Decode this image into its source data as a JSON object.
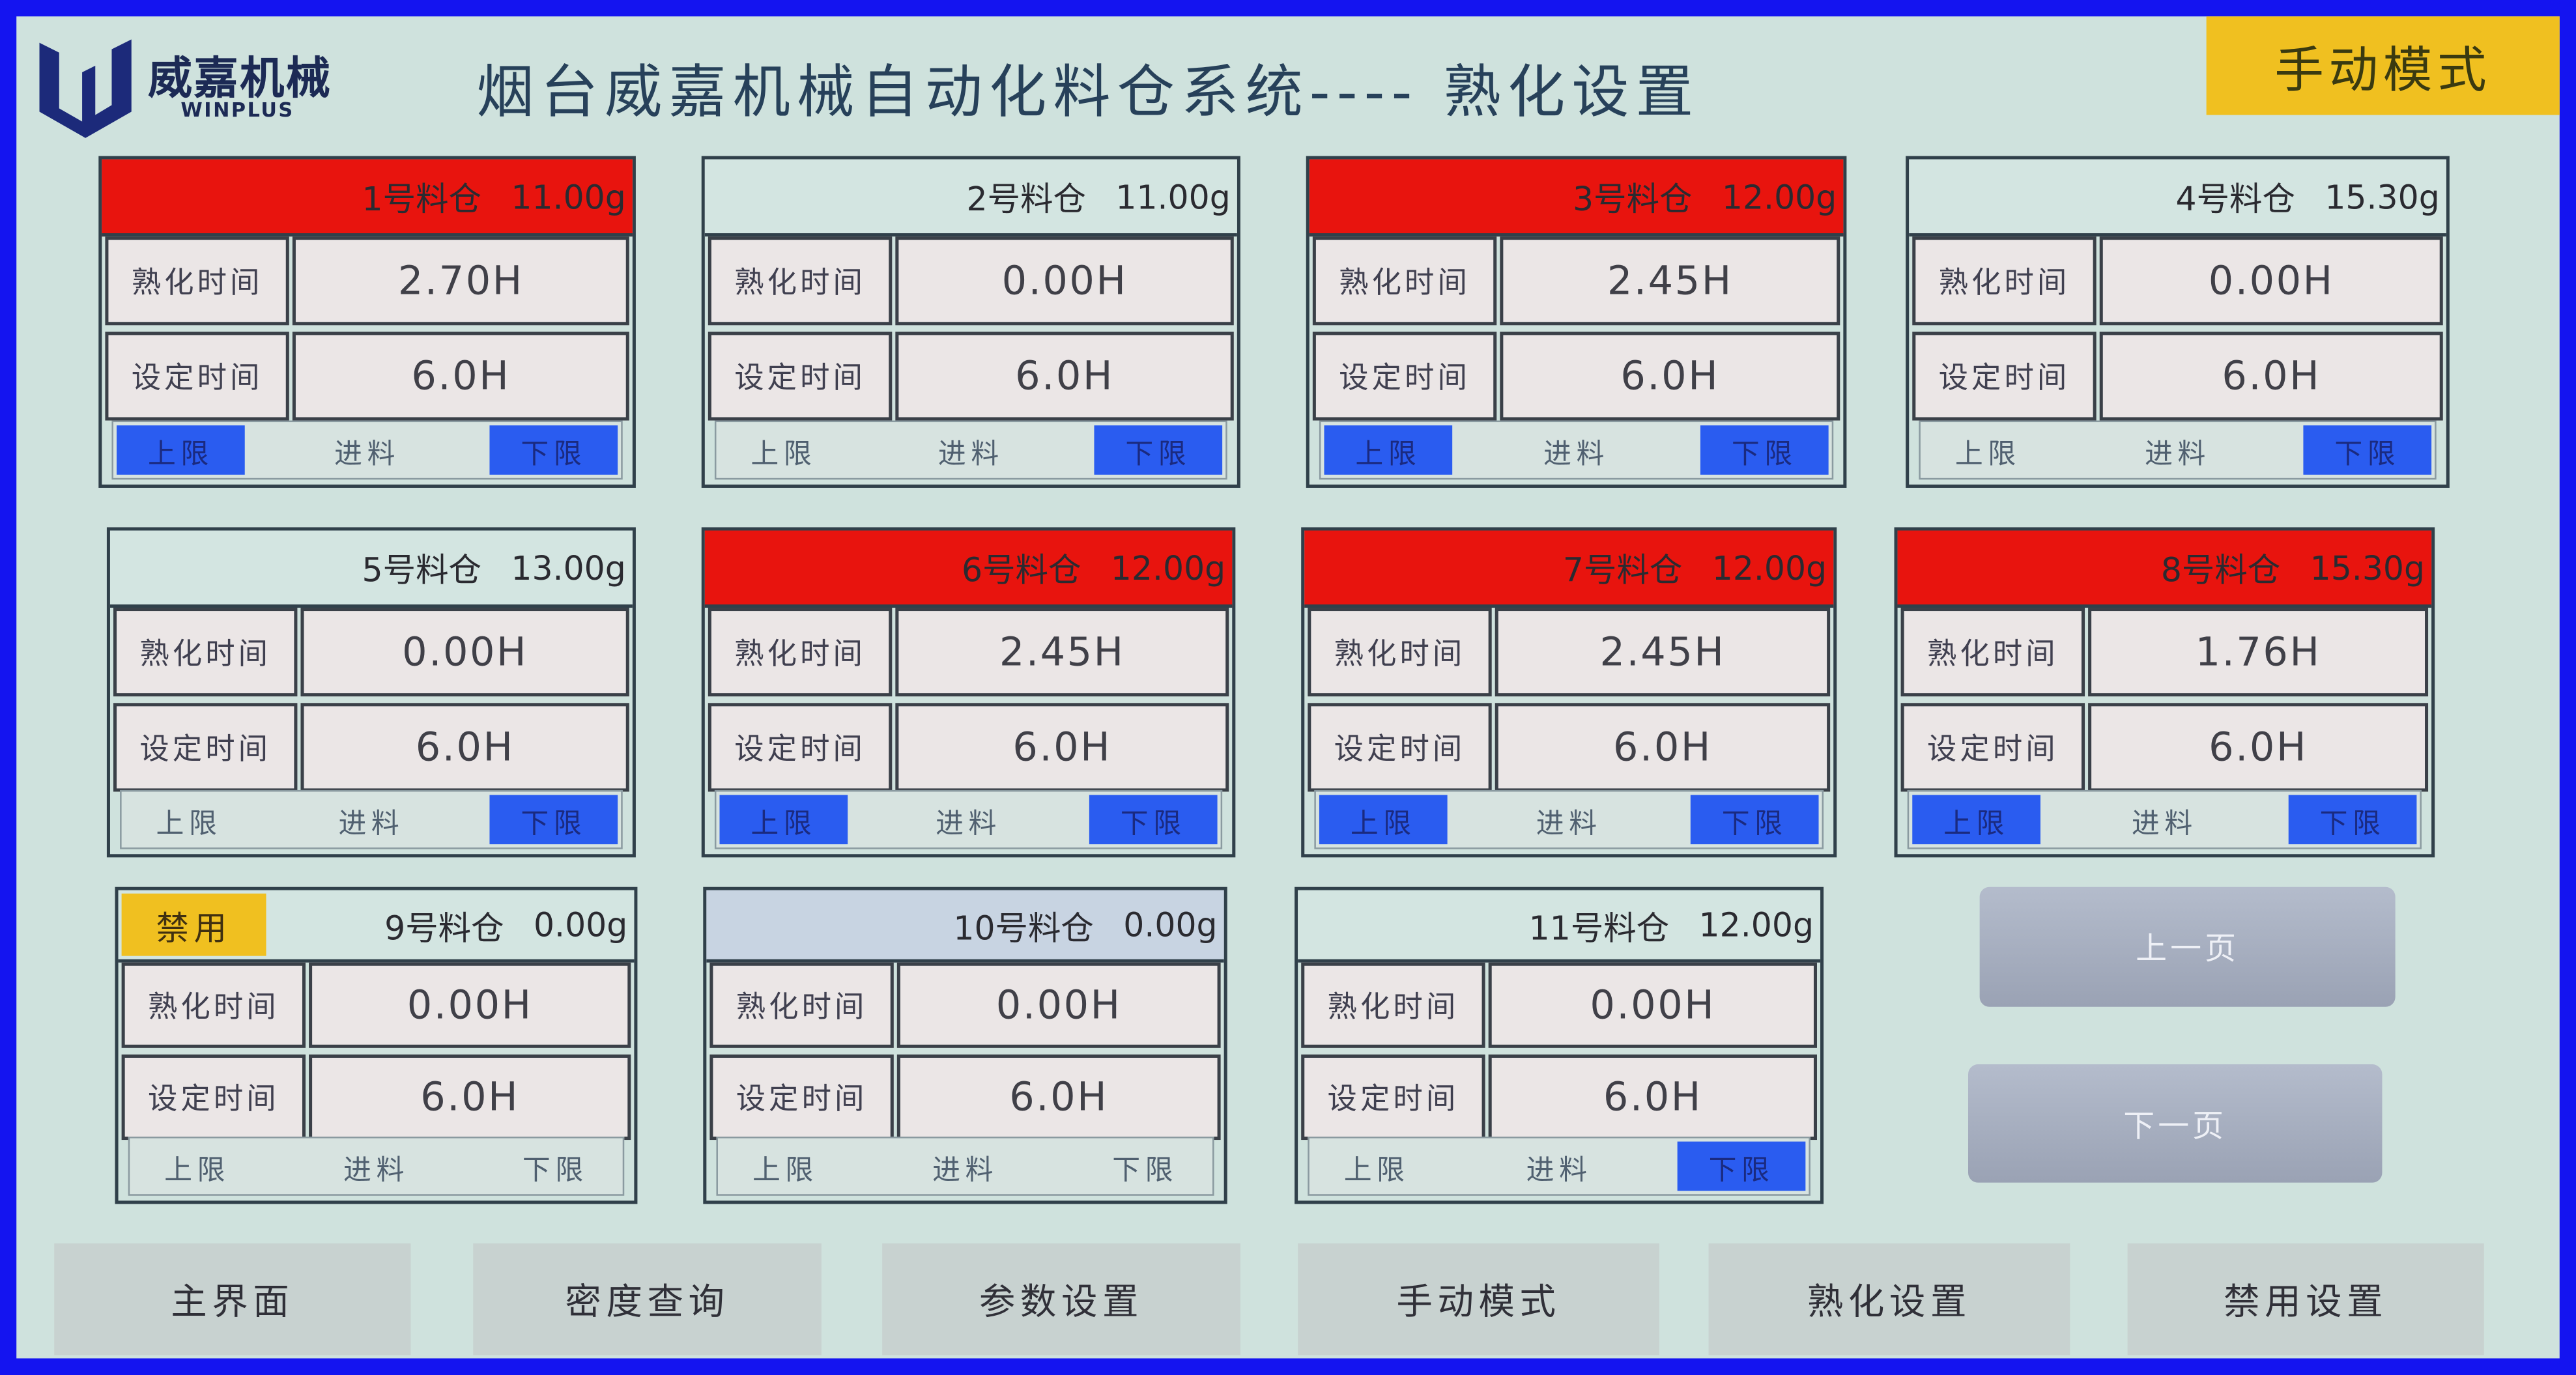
{
  "header": {
    "logo_text": "威嘉机械",
    "logo_sub": "WINPLUS",
    "title": "烟台威嘉机械自动化料仓系统----  熟化设置",
    "mode_badge": "手动模式"
  },
  "colors": {
    "alarm": "#e8140e",
    "active": "#2a5cf0",
    "disabled": "#f0c020",
    "border": "#1414f0"
  },
  "labels": {
    "aging_time": "熟化时间",
    "set_time": "设定时间",
    "upper": "上限",
    "feed": "进料",
    "lower": "下限"
  },
  "bins": [
    {
      "name": "1号料仓",
      "weight": "11.00g",
      "aging": "2.70H",
      "set": "6.0H",
      "state": "alarm",
      "upper": true,
      "feed": false,
      "lower": true
    },
    {
      "name": "2号料仓",
      "weight": "11.00g",
      "aging": "0.00H",
      "set": "6.0H",
      "state": "normal",
      "upper": false,
      "feed": false,
      "lower": true
    },
    {
      "name": "3号料仓",
      "weight": "12.00g",
      "aging": "2.45H",
      "set": "6.0H",
      "state": "alarm",
      "upper": true,
      "feed": false,
      "lower": true
    },
    {
      "name": "4号料仓",
      "weight": "15.30g",
      "aging": "0.00H",
      "set": "6.0H",
      "state": "normal",
      "upper": false,
      "feed": false,
      "lower": true
    },
    {
      "name": "5号料仓",
      "weight": "13.00g",
      "aging": "0.00H",
      "set": "6.0H",
      "state": "normal",
      "upper": false,
      "feed": false,
      "lower": true
    },
    {
      "name": "6号料仓",
      "weight": "12.00g",
      "aging": "2.45H",
      "set": "6.0H",
      "state": "alarm",
      "upper": true,
      "feed": false,
      "lower": true
    },
    {
      "name": "7号料仓",
      "weight": "12.00g",
      "aging": "2.45H",
      "set": "6.0H",
      "state": "alarm",
      "upper": true,
      "feed": false,
      "lower": true
    },
    {
      "name": "8号料仓",
      "weight": "15.30g",
      "aging": "1.76H",
      "set": "6.0H",
      "state": "alarm",
      "upper": true,
      "feed": false,
      "lower": true
    },
    {
      "name": "9号料仓",
      "weight": "0.00g",
      "aging": "0.00H",
      "set": "6.0H",
      "state": "disabled",
      "badge": "禁用",
      "upper": false,
      "feed": false,
      "lower": false
    },
    {
      "name": "10号料仓",
      "weight": "0.00g",
      "aging": "0.00H",
      "set": "6.0H",
      "state": "idle",
      "upper": false,
      "feed": false,
      "lower": false
    },
    {
      "name": "11号料仓",
      "weight": "12.00g",
      "aging": "0.00H",
      "set": "6.0H",
      "state": "normal",
      "upper": false,
      "feed": false,
      "lower": true
    }
  ],
  "paging": {
    "prev": "上一页",
    "next": "下一页"
  },
  "nav": [
    "主界面",
    "密度查询",
    "参数设置",
    "手动模式",
    "熟化设置",
    "禁用设置"
  ]
}
